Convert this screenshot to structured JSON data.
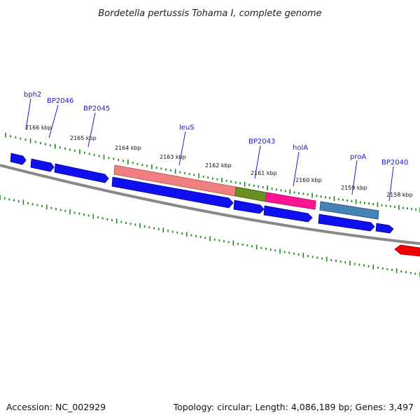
{
  "title": "Bordetella pertussis Tohama I, complete genome",
  "footer": {
    "accession": "Accession: NC_002929",
    "summary": "Topology: circular; Length: 4,086,189 bp; Genes: 3,497"
  },
  "colors": {
    "gene_cds": "#1010ee",
    "gene_red": "#ee0000",
    "backbone": "#888888",
    "tick": "#1a8a1a",
    "label": "#1a1acc",
    "feature_leuS": "#f08080",
    "feature_BP2043": "#6b8e23",
    "feature_holA": "#ff1493",
    "feature_proA": "#4682b4"
  },
  "scale_labels": [
    "2166 kbp",
    "2165 kbp",
    "2164 kbp",
    "2163 kbp",
    "2162 kbp",
    "2161 kbp",
    "2160 kbp",
    "2159 kbp",
    "2158 kbp"
  ],
  "gene_labels": [
    "bph2",
    "BP2046",
    "BP2045",
    "leuS",
    "BP2043",
    "holA",
    "proA",
    "BP2040"
  ],
  "feature_bars": [
    "leuS",
    "BP2043",
    "holA",
    "proA"
  ]
}
